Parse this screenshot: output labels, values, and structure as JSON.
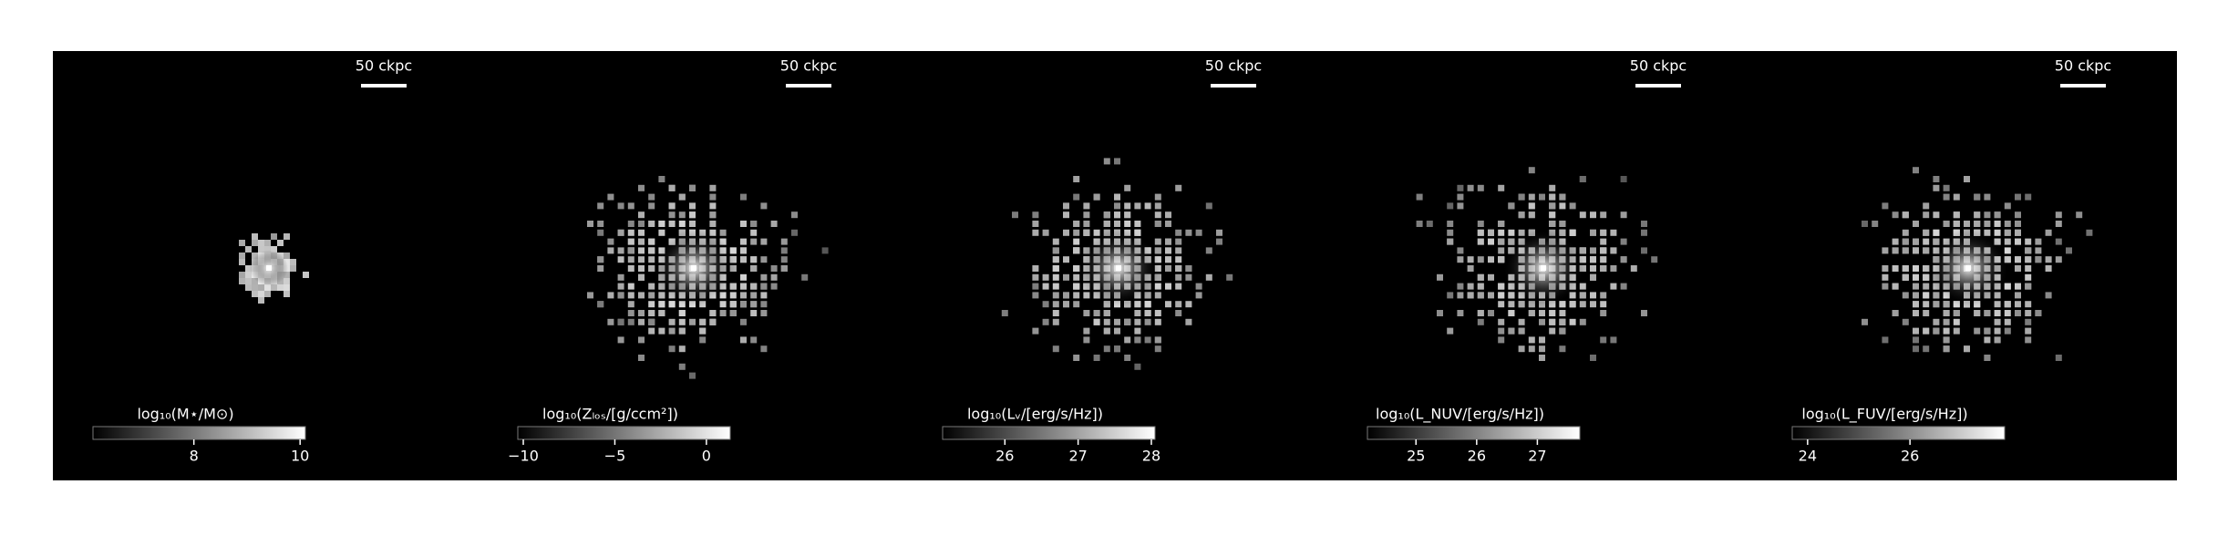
{
  "chart_data": [
    {
      "type": "image",
      "colorbar_label": "log₁₀(M⋆/M⊙)",
      "scalebar_label": "50 ckpc",
      "clim": [
        6.1,
        10.1
      ],
      "cticks": [
        8,
        10
      ]
    },
    {
      "type": "image",
      "colorbar_label": "log₁₀(Zₗₒₛ/[g/ccm²])",
      "scalebar_label": "50 ckpc",
      "clim": [
        -10.3,
        1.3
      ],
      "cticks": [
        {
          "value": -10,
          "label": "−10"
        },
        {
          "value": -5,
          "label": "−5"
        },
        0
      ]
    },
    {
      "type": "image",
      "colorbar_label": "log₁₀(Lᵥ/[erg/s/Hz])",
      "scalebar_label": "50 ckpc",
      "clim": [
        25.15,
        28.05
      ],
      "cticks": [
        26,
        27,
        28
      ]
    },
    {
      "type": "image",
      "colorbar_label": "log₁₀(L_NUV/[erg/s/Hz])",
      "scalebar_label": "50 ckpc",
      "clim": [
        24.2,
        27.7
      ],
      "cticks": [
        25,
        26,
        27
      ]
    },
    {
      "type": "image",
      "colorbar_label": "log₁₀(L_FUV/[erg/s/Hz])",
      "scalebar_label": "50 ckpc",
      "clim": [
        23.7,
        27.85
      ],
      "cticks": [
        24,
        26
      ]
    }
  ]
}
